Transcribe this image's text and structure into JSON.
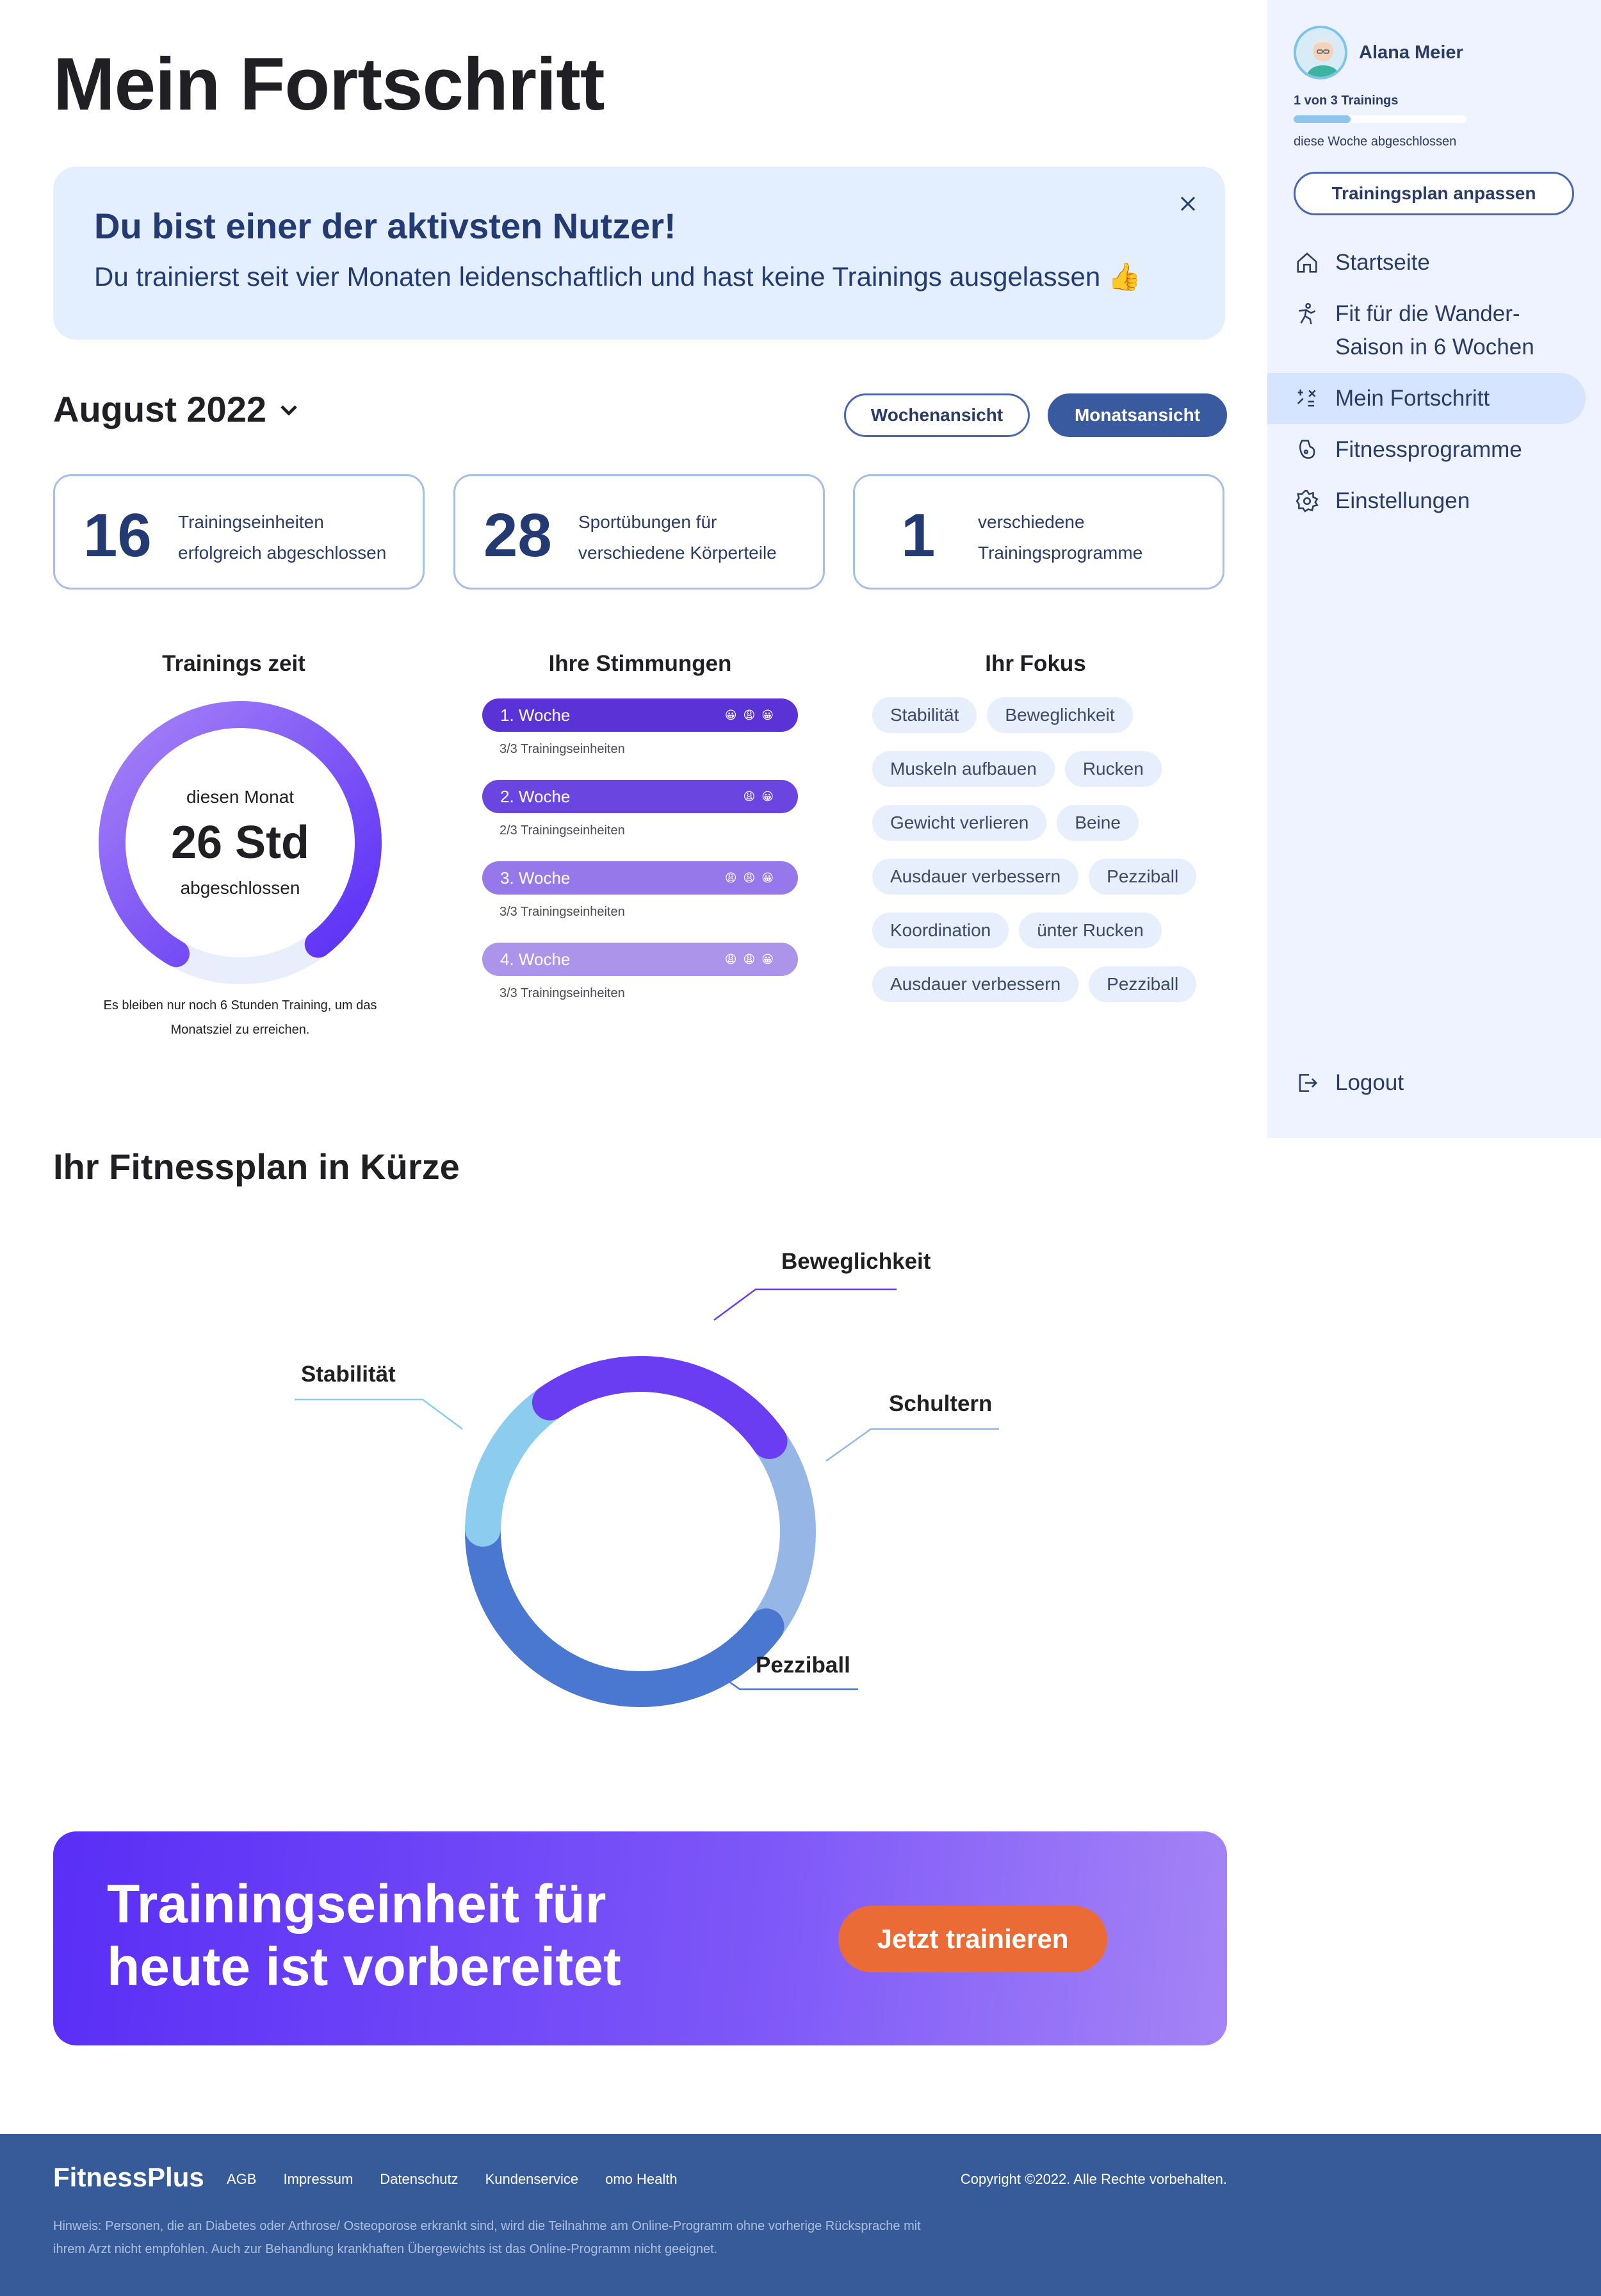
{
  "sidebar": {
    "user_name": "Alana Meier",
    "progress_label": "1 von 3 Trainings",
    "progress_fraction": 0.33,
    "progress_sub": "diese Woche abgeschlossen",
    "plan_button": "Trainingsplan anpassen",
    "nav": [
      {
        "label": "Startseite",
        "icon": "home-icon"
      },
      {
        "label": "Fit für die Wander-Saison in 6 Wochen",
        "icon": "hiking-icon"
      },
      {
        "label": "Mein Fortschritt",
        "icon": "progress-icon",
        "active": true
      },
      {
        "label": "Fitnessprogramme",
        "icon": "fitness-icon"
      },
      {
        "label": "Einstellungen",
        "icon": "settings-icon"
      }
    ],
    "logout": "Logout"
  },
  "page_title": "Mein Fortschritt",
  "banner": {
    "title": "Du bist einer der aktivsten Nutzer!",
    "text": "Du trainierst seit vier Monaten leidenschaftlich und hast keine Trainings ausgelassen 👍"
  },
  "period": {
    "month": "August 2022",
    "week_view": "Wochenansicht",
    "month_view": "Monatsansicht",
    "selected": "Monatsansicht"
  },
  "stats": [
    {
      "value": "16",
      "text": "Trainingseinheiten erfolgreich abgeschlossen"
    },
    {
      "value": "28",
      "text": "Sportübungen für verschiedene Körperteile"
    },
    {
      "value": "1",
      "text": "verschiedene Trainingsprogramme"
    }
  ],
  "training_time": {
    "title": "Trainings zeit",
    "top": "diesen Monat",
    "value": "26 Std",
    "bottom": "abgeschlossen",
    "note": "Es bleiben nur noch 6 Stunden Training, um das Monatsziel zu erreichen.",
    "fraction_done": 0.8125
  },
  "moods": {
    "title": "Ihre Stimmungen",
    "weeks": [
      {
        "label": "1. Woche",
        "emojis": "😀😩😀",
        "sub": "3/3 Trainingseinheiten",
        "color": "#5a32d6"
      },
      {
        "label": "2. Woche",
        "emojis": "😩😀",
        "sub": "2/3 Trainingseinheiten",
        "color": "#6a45e0"
      },
      {
        "label": "3. Woche",
        "emojis": "😩😩😀",
        "sub": "3/3 Trainingseinheiten",
        "color": "#9778ea"
      },
      {
        "label": "4. Woche",
        "emojis": "😩😩😀",
        "sub": "3/3 Trainingseinheiten",
        "color": "#ac94ea"
      }
    ]
  },
  "focus": {
    "title": "Ihr Fokus",
    "rows": [
      [
        "Stabilität",
        "Beweglichkeit"
      ],
      [
        "Muskeln aufbauen",
        "Rucken"
      ],
      [
        "Gewicht verlieren",
        "Beine"
      ],
      [
        "Ausdauer verbessern",
        "Pezziball"
      ],
      [
        "Koordination",
        "ünter Rucken"
      ],
      [
        "Ausdauer verbessern",
        "Pezziball"
      ]
    ]
  },
  "plan_summary": {
    "title": "Ihr Fitnessplan in Kürze"
  },
  "chart_data": {
    "type": "pie",
    "labels": [
      "Beweglichkeit",
      "Schultern",
      "Pezziball",
      "Stabilität"
    ],
    "values": [
      25,
      20,
      40,
      15
    ],
    "colors": [
      "#6a3cf2",
      "#96b6e6",
      "#4a78d0",
      "#8cccef"
    ]
  },
  "cta": {
    "title": "Trainingseinheit für heute ist vorbereitet",
    "button": "Jetzt trainieren"
  },
  "footer": {
    "brand": "FitnessPlus",
    "links": [
      "AGB",
      "Impressum",
      "Datenschutz",
      "Kundenservice",
      "omo Health"
    ],
    "copyright": "Copyright ©2022. Alle Rechte vorbehalten.",
    "note": "Hinweis: Personen, die an Diabetes oder Arthrose/ Osteoporose erkrankt sind, wird die Teilnahme am Online-Programm ohne vorherige Rücksprache mit ihrem Arzt nicht empfohlen. Auch zur Behandlung krankhaften Übergewichts ist das Online-Programm nicht geeignet."
  }
}
